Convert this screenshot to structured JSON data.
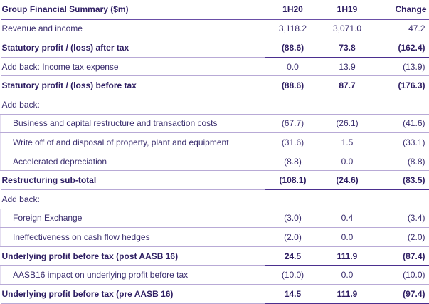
{
  "table": {
    "header": {
      "label": "Group Financial Summary ($m)",
      "col_1h20": "1H20",
      "col_1h19": "1H19",
      "col_change": "Change"
    },
    "rows": [
      {
        "label": "Revenue and income",
        "v1h20": "3,118.2",
        "v1h19": "3,071.0",
        "change": "47.2",
        "bold": false,
        "indent": false
      },
      {
        "label": "Statutory profit / (loss) after tax",
        "v1h20": "(88.6)",
        "v1h19": "73.8",
        "change": "(162.4)",
        "bold": true,
        "indent": false
      },
      {
        "label": "Add back: Income tax expense",
        "v1h20": "0.0",
        "v1h19": "13.9",
        "change": "(13.9)",
        "bold": false,
        "indent": false
      },
      {
        "label": "Statutory profit / (loss) before tax",
        "v1h20": "(88.6)",
        "v1h19": "87.7",
        "change": "(176.3)",
        "bold": true,
        "indent": false
      },
      {
        "label": "Add back:",
        "v1h20": "",
        "v1h19": "",
        "change": "",
        "bold": false,
        "indent": false
      },
      {
        "label": "Business and capital restructure and transaction costs",
        "v1h20": "(67.7)",
        "v1h19": "(26.1)",
        "change": "(41.6)",
        "bold": false,
        "indent": true
      },
      {
        "label": "Write off of and disposal of property, plant and equipment",
        "v1h20": "(31.6)",
        "v1h19": "1.5",
        "change": "(33.1)",
        "bold": false,
        "indent": true
      },
      {
        "label": "Accelerated depreciation",
        "v1h20": "(8.8)",
        "v1h19": "0.0",
        "change": "(8.8)",
        "bold": false,
        "indent": true
      },
      {
        "label": "Restructuring sub-total",
        "v1h20": "(108.1)",
        "v1h19": "(24.6)",
        "change": "(83.5)",
        "bold": true,
        "indent": false
      },
      {
        "label": "Add back:",
        "v1h20": "",
        "v1h19": "",
        "change": "",
        "bold": false,
        "indent": false
      },
      {
        "label": "Foreign Exchange",
        "v1h20": "(3.0)",
        "v1h19": "0.4",
        "change": "(3.4)",
        "bold": false,
        "indent": true
      },
      {
        "label": "Ineffectiveness on cash flow hedges",
        "v1h20": "(2.0)",
        "v1h19": "0.0",
        "change": "(2.0)",
        "bold": false,
        "indent": true
      },
      {
        "label": "Underlying profit before tax (post AASB 16)",
        "v1h20": "24.5",
        "v1h19": "111.9",
        "change": "(87.4)",
        "bold": true,
        "indent": false
      },
      {
        "label": "AASB16 impact on underlying profit before tax",
        "v1h20": "(10.0)",
        "v1h19": "0.0",
        "change": "(10.0)",
        "bold": false,
        "indent": true
      },
      {
        "label": "Underlying profit before tax (pre AASB 16)",
        "v1h20": "14.5",
        "v1h19": "111.9",
        "change": "(97.4)",
        "bold": true,
        "indent": false
      }
    ]
  }
}
